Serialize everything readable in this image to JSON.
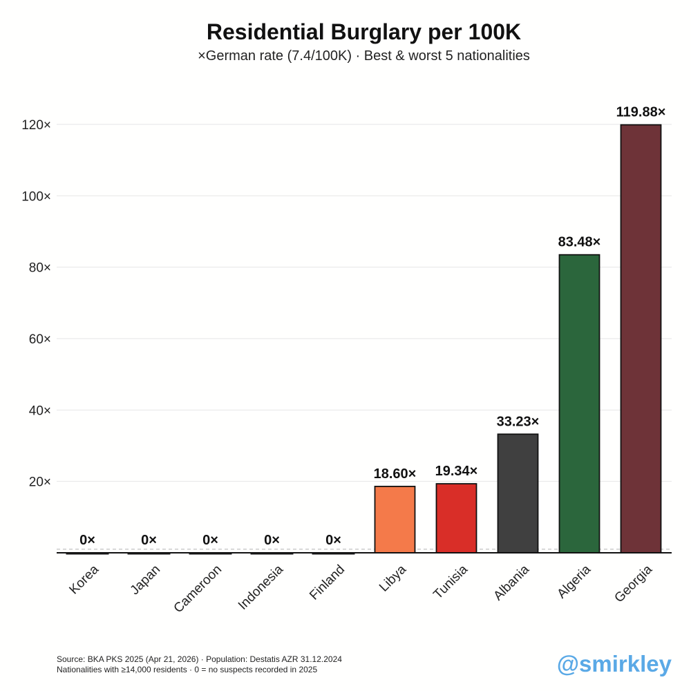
{
  "header": {
    "title": "Residential Burglary per 100K",
    "subtitle": "×German rate (7.4/100K) · Best & worst 5 nationalities"
  },
  "chart_data": {
    "type": "bar",
    "title": "Residential Burglary per 100K",
    "subtitle": "×German rate (7.4/100K) · Best & worst 5 nationalities",
    "categories": [
      "Korea",
      "Japan",
      "Cameroon",
      "Indonesia",
      "Finland",
      "Libya",
      "Tunisia",
      "Albania",
      "Algeria",
      "Georgia"
    ],
    "values": [
      0,
      0,
      0,
      0,
      0,
      18.6,
      19.34,
      33.23,
      83.48,
      119.88
    ],
    "value_labels": [
      "0×",
      "0×",
      "0×",
      "0×",
      "0×",
      "18.60×",
      "19.34×",
      "33.23×",
      "83.48×",
      "119.88×"
    ],
    "colors": [
      "#1a1a1a",
      "#1a1a1a",
      "#1a1a1a",
      "#1a1a1a",
      "#1a1a1a",
      "#f47a4a",
      "#d92e28",
      "#404040",
      "#2b663c",
      "#6e3338"
    ],
    "yticks": [
      20,
      40,
      60,
      80,
      100,
      120
    ],
    "ytick_labels": [
      "20×",
      "40×",
      "60×",
      "80×",
      "100×",
      "120×"
    ],
    "ylim": [
      0,
      128
    ],
    "reference_line": 1,
    "xlabel": "",
    "ylabel": "",
    "grid": true
  },
  "footer": {
    "source_line1": "Source: BKA PKS 2025 (Apr 21, 2026) · Population: Destatis AZR 31.12.2024",
    "source_line2": "Nationalities with ≥14,000 residents · 0 = no suspects recorded in 2025",
    "handle": "@smirkley"
  }
}
